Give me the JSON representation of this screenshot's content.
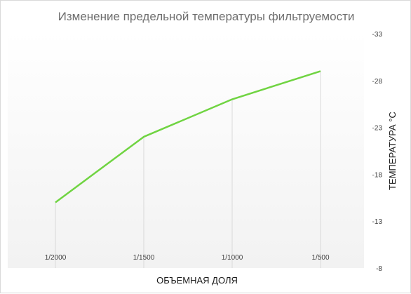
{
  "chart_data": {
    "type": "line",
    "title": "Изменение  предельной температуры фильтруемости",
    "xlabel": "ОБЪЕМНАЯ ДОЛЯ",
    "ylabel": "ТЕМПЕРАТУРА °С",
    "categories": [
      "1/2000",
      "1/1500",
      "1/1000",
      "1/500"
    ],
    "series": [
      {
        "values": [
          -15,
          -22,
          -26,
          -29
        ]
      }
    ],
    "y_axis": {
      "position": "right",
      "reversed": true,
      "range": [
        -8,
        -33
      ],
      "ticks": [
        "-8",
        "-13",
        "-18",
        "-23",
        "-28",
        "-33"
      ]
    },
    "grid": "vertical lines at categories",
    "legend": "none",
    "colors": {
      "line": "#70d442",
      "grid": "#d9d9d9",
      "background_top": "#ffffff",
      "background_bottom": "#f2f2f2"
    }
  }
}
